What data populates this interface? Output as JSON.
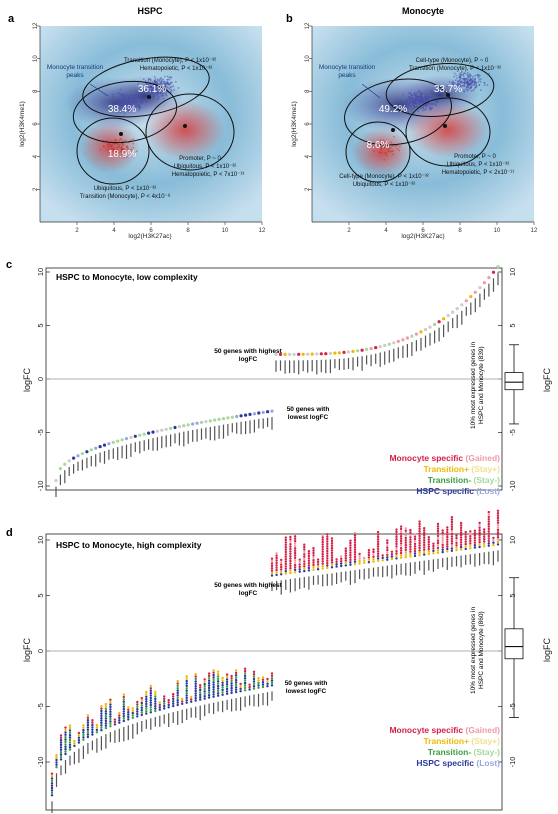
{
  "panels_top": [
    {
      "label": "a",
      "title": "HSPC",
      "xlabel": "log2(H3K27ac)",
      "ylabel": "log2(H3K4me1)",
      "xticks": [
        "2",
        "4",
        "6",
        "8",
        "10",
        "12"
      ],
      "yticks": [
        "2",
        "4",
        "6",
        "8",
        "10",
        "12"
      ],
      "peaks_label": "Monocyte transition peaks",
      "pct": [
        "36.1%",
        "38.4%",
        "18.9%"
      ],
      "ann": [
        "Transition (Monocyte), P < 1x10⁻³²",
        "Hematopoietic, P < 1x10⁻³²",
        "Promoter, P ~ 0",
        "Ubiquitous, P < 1x10⁻³²",
        "Hematopoietic, P < 7x10⁻¹³",
        "Ubiquitous, P < 1x10⁻³²",
        "Transition (Monocyte), P < 4x10⁻⁸"
      ]
    },
    {
      "label": "b",
      "title": "Monocyte",
      "xlabel": "log2(H3K27ac)",
      "ylabel": "log2(H3K4me1)",
      "xticks": [
        "2",
        "4",
        "6",
        "8",
        "10",
        "12"
      ],
      "yticks": [
        "2",
        "4",
        "6",
        "8",
        "10",
        "12"
      ],
      "peaks_label": "Monocyte transition peaks",
      "pct": [
        "33.7%",
        "49.2%",
        "8.6%"
      ],
      "ann": [
        "Cell-type (Monocyte), P ~ 0",
        "Transition (Monocyte), P < 1x10⁻³²",
        "Promoter, P ~ 0",
        "Ubiquitous, P < 1x10⁻³²",
        "Hematopoietic, P < 2x10⁻¹¹",
        "Cell-type (Monocyte), P < 1x10⁻³²",
        "Ubiquitous, P < 1x10⁻³²"
      ]
    }
  ],
  "panel_c": {
    "label": "c",
    "title": "HSPC to Monocyte, low complexity",
    "ylabel": "logFC",
    "yticks": [
      "10",
      "5",
      "0",
      "-5",
      "-10"
    ],
    "high_note": "50 genes with highest logFC",
    "low_note": "50 genes with lowest logFC",
    "box_label": "10% most expressed genes in HSPC and Monocyte",
    "box_n": "(839)"
  },
  "panel_d": {
    "label": "d",
    "title": "HSPC to Monocyte, high complexity",
    "ylabel": "logFC",
    "yticks": [
      "10",
      "5",
      "0",
      "-5",
      "-10"
    ],
    "high_note": "50 genes with highest logFC",
    "low_note": "50 genes with lowest logFC",
    "box_label": "10% most expressed genes in HSPC and Monocyte",
    "box_n": "(860)"
  },
  "legend": [
    {
      "name": "Monocyte specific",
      "sub": "(Gained)",
      "color": "#d62046",
      "subcolor": "#f09aa8"
    },
    {
      "name": "Transition+",
      "sub": "(Stay+)",
      "color": "#f0b800",
      "subcolor": "#f5dd8a"
    },
    {
      "name": "Transition-",
      "sub": "(Stay-)",
      "color": "#3aa040",
      "subcolor": "#a8d89a"
    },
    {
      "name": "HSPC specific",
      "sub": "(Lost)",
      "color": "#2a3a9a",
      "subcolor": "#9aa6e0"
    }
  ],
  "chart_data": [
    {
      "type": "scatter",
      "title": "HSPC",
      "xlabel": "log2(H3K27ac)",
      "ylabel": "log2(H3K4me1)",
      "xlim": [
        0,
        12
      ],
      "ylim": [
        0,
        12
      ],
      "clusters": [
        {
          "center": [
            6.5,
            8.3
          ],
          "percent": 36.1
        },
        {
          "center": [
            4.8,
            7.3
          ],
          "percent": 38.4
        },
        {
          "center": [
            4.3,
            4.6
          ],
          "percent": 18.9
        }
      ]
    },
    {
      "type": "scatter",
      "title": "Monocyte",
      "xlabel": "log2(H3K27ac)",
      "ylabel": "log2(H3K4me1)",
      "xlim": [
        0,
        12
      ],
      "ylim": [
        0,
        12
      ],
      "clusters": [
        {
          "center": [
            8.4,
            8.6
          ],
          "percent": 33.7
        },
        {
          "center": [
            5.8,
            7.4
          ],
          "percent": 49.2
        },
        {
          "center": [
            4.1,
            4.6
          ],
          "percent": 8.6
        }
      ]
    },
    {
      "type": "scatter",
      "title": "HSPC to Monocyte, low complexity",
      "ylabel": "logFC",
      "ylim": [
        -10,
        10
      ],
      "high_range": [
        2.3,
        10.5
      ],
      "low_range": [
        -9.5,
        -3.0
      ]
    },
    {
      "type": "scatter",
      "title": "HSPC to Monocyte, high complexity",
      "ylabel": "logFC",
      "ylim": [
        -10,
        10
      ],
      "high_range": [
        6.8,
        9.6
      ],
      "low_range": [
        -13.0,
        -3.1
      ]
    }
  ]
}
